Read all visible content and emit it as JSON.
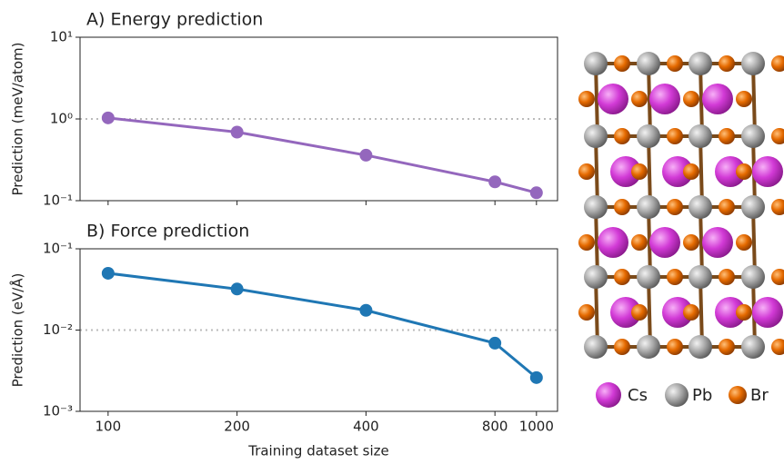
{
  "chart_data": [
    {
      "type": "line",
      "title": "A) Energy prediction",
      "ylabel": "Prediction (meV/atom)",
      "x": [
        100,
        200,
        400,
        800,
        1000
      ],
      "series": [
        {
          "color": "#9467bd",
          "values": [
            1.03,
            0.69,
            0.36,
            0.17,
            0.125
          ]
        }
      ],
      "xlog": true,
      "ylog": true,
      "xlim": [
        86,
        1120
      ],
      "xticks": [
        100,
        200,
        400,
        800,
        1000
      ],
      "show_xtick_labels": false,
      "ylim": [
        0.1,
        10
      ],
      "yticks": [
        {
          "value": 0.1,
          "label": "10⁻¹"
        },
        {
          "value": 1,
          "label": "10⁰"
        },
        {
          "value": 10,
          "label": "10¹"
        }
      ],
      "hline": 1
    },
    {
      "type": "line",
      "title": "B) Force prediction",
      "ylabel": "Prediction (eV/Å)",
      "xlabel": "Training dataset size",
      "x": [
        100,
        200,
        400,
        800,
        1000
      ],
      "series": [
        {
          "color": "#1f77b4",
          "values": [
            0.05,
            0.032,
            0.0175,
            0.0069,
            0.0026
          ]
        }
      ],
      "xlog": true,
      "ylog": true,
      "xlim": [
        86,
        1120
      ],
      "xticks": [
        100,
        200,
        400,
        800,
        1000
      ],
      "show_xtick_labels": true,
      "ylim": [
        0.001,
        0.1
      ],
      "yticks": [
        {
          "value": 0.001,
          "label": "10⁻³"
        },
        {
          "value": 0.01,
          "label": "10⁻²"
        },
        {
          "value": 0.1,
          "label": "10⁻¹"
        }
      ],
      "hline": 0.01
    }
  ],
  "structure_legend": [
    "Cs",
    "Pb",
    "Br"
  ]
}
